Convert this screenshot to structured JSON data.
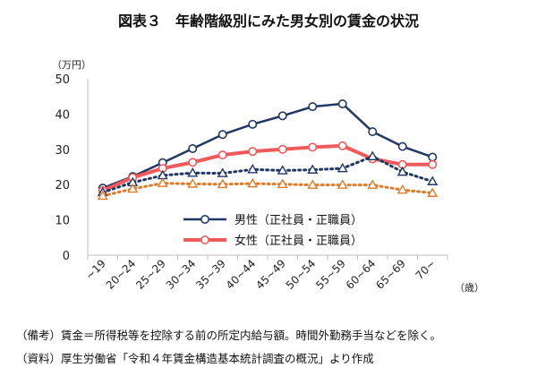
{
  "figure": {
    "title": "図表３　年齢階級別にみた男女別の賃金の状況",
    "notes": [
      "（備考）賃金＝所得税等を控除する前の所定内給与額。時間外勤務手当などを除く。",
      "（資料）厚生労働省「令和４年賃金構造基本統計調査の概況」より作成"
    ]
  },
  "chart_data": {
    "type": "line",
    "title": "図表３　年齢階級別にみた男女別の賃金の状況",
    "ylabel": "（万円）",
    "xlabel": "（歳）",
    "ylim": [
      0,
      50
    ],
    "yticks": [
      0,
      10,
      20,
      30,
      40,
      50
    ],
    "grid": false,
    "legend_position": "lower-center",
    "categories": [
      "~19",
      "20~24",
      "25~29",
      "30~34",
      "35~39",
      "40~44",
      "45~49",
      "50~54",
      "55~59",
      "60~64",
      "65~69",
      "70~"
    ],
    "series": [
      {
        "name": "男性（正社員・正職員）",
        "style": "solid",
        "marker": "circle",
        "color": "#1f3864",
        "legend": true,
        "values": [
          19.0,
          22.3,
          26.2,
          30.2,
          34.2,
          37.1,
          39.5,
          42.1,
          42.9,
          35.0,
          30.8,
          27.8
        ]
      },
      {
        "name": "女性（正社員・正職員）",
        "style": "solid",
        "marker": "circle",
        "color": "#f05a5a",
        "legend": true,
        "values": [
          18.3,
          22.0,
          24.6,
          26.3,
          28.4,
          29.4,
          30.0,
          30.6,
          31.0,
          27.3,
          25.7,
          25.7
        ]
      },
      {
        "name": "",
        "style": "dotted",
        "marker": "triangle",
        "color": "#1f3864",
        "legend": false,
        "values": [
          17.8,
          20.6,
          22.6,
          23.3,
          23.2,
          24.3,
          24.0,
          24.2,
          24.6,
          28.0,
          23.6,
          20.9
        ]
      },
      {
        "name": "",
        "style": "dotted",
        "marker": "triangle",
        "color": "#e07b2a",
        "legend": false,
        "values": [
          16.8,
          18.8,
          20.4,
          20.2,
          20.1,
          20.3,
          20.1,
          19.9,
          19.9,
          19.9,
          18.5,
          17.6
        ]
      }
    ]
  }
}
